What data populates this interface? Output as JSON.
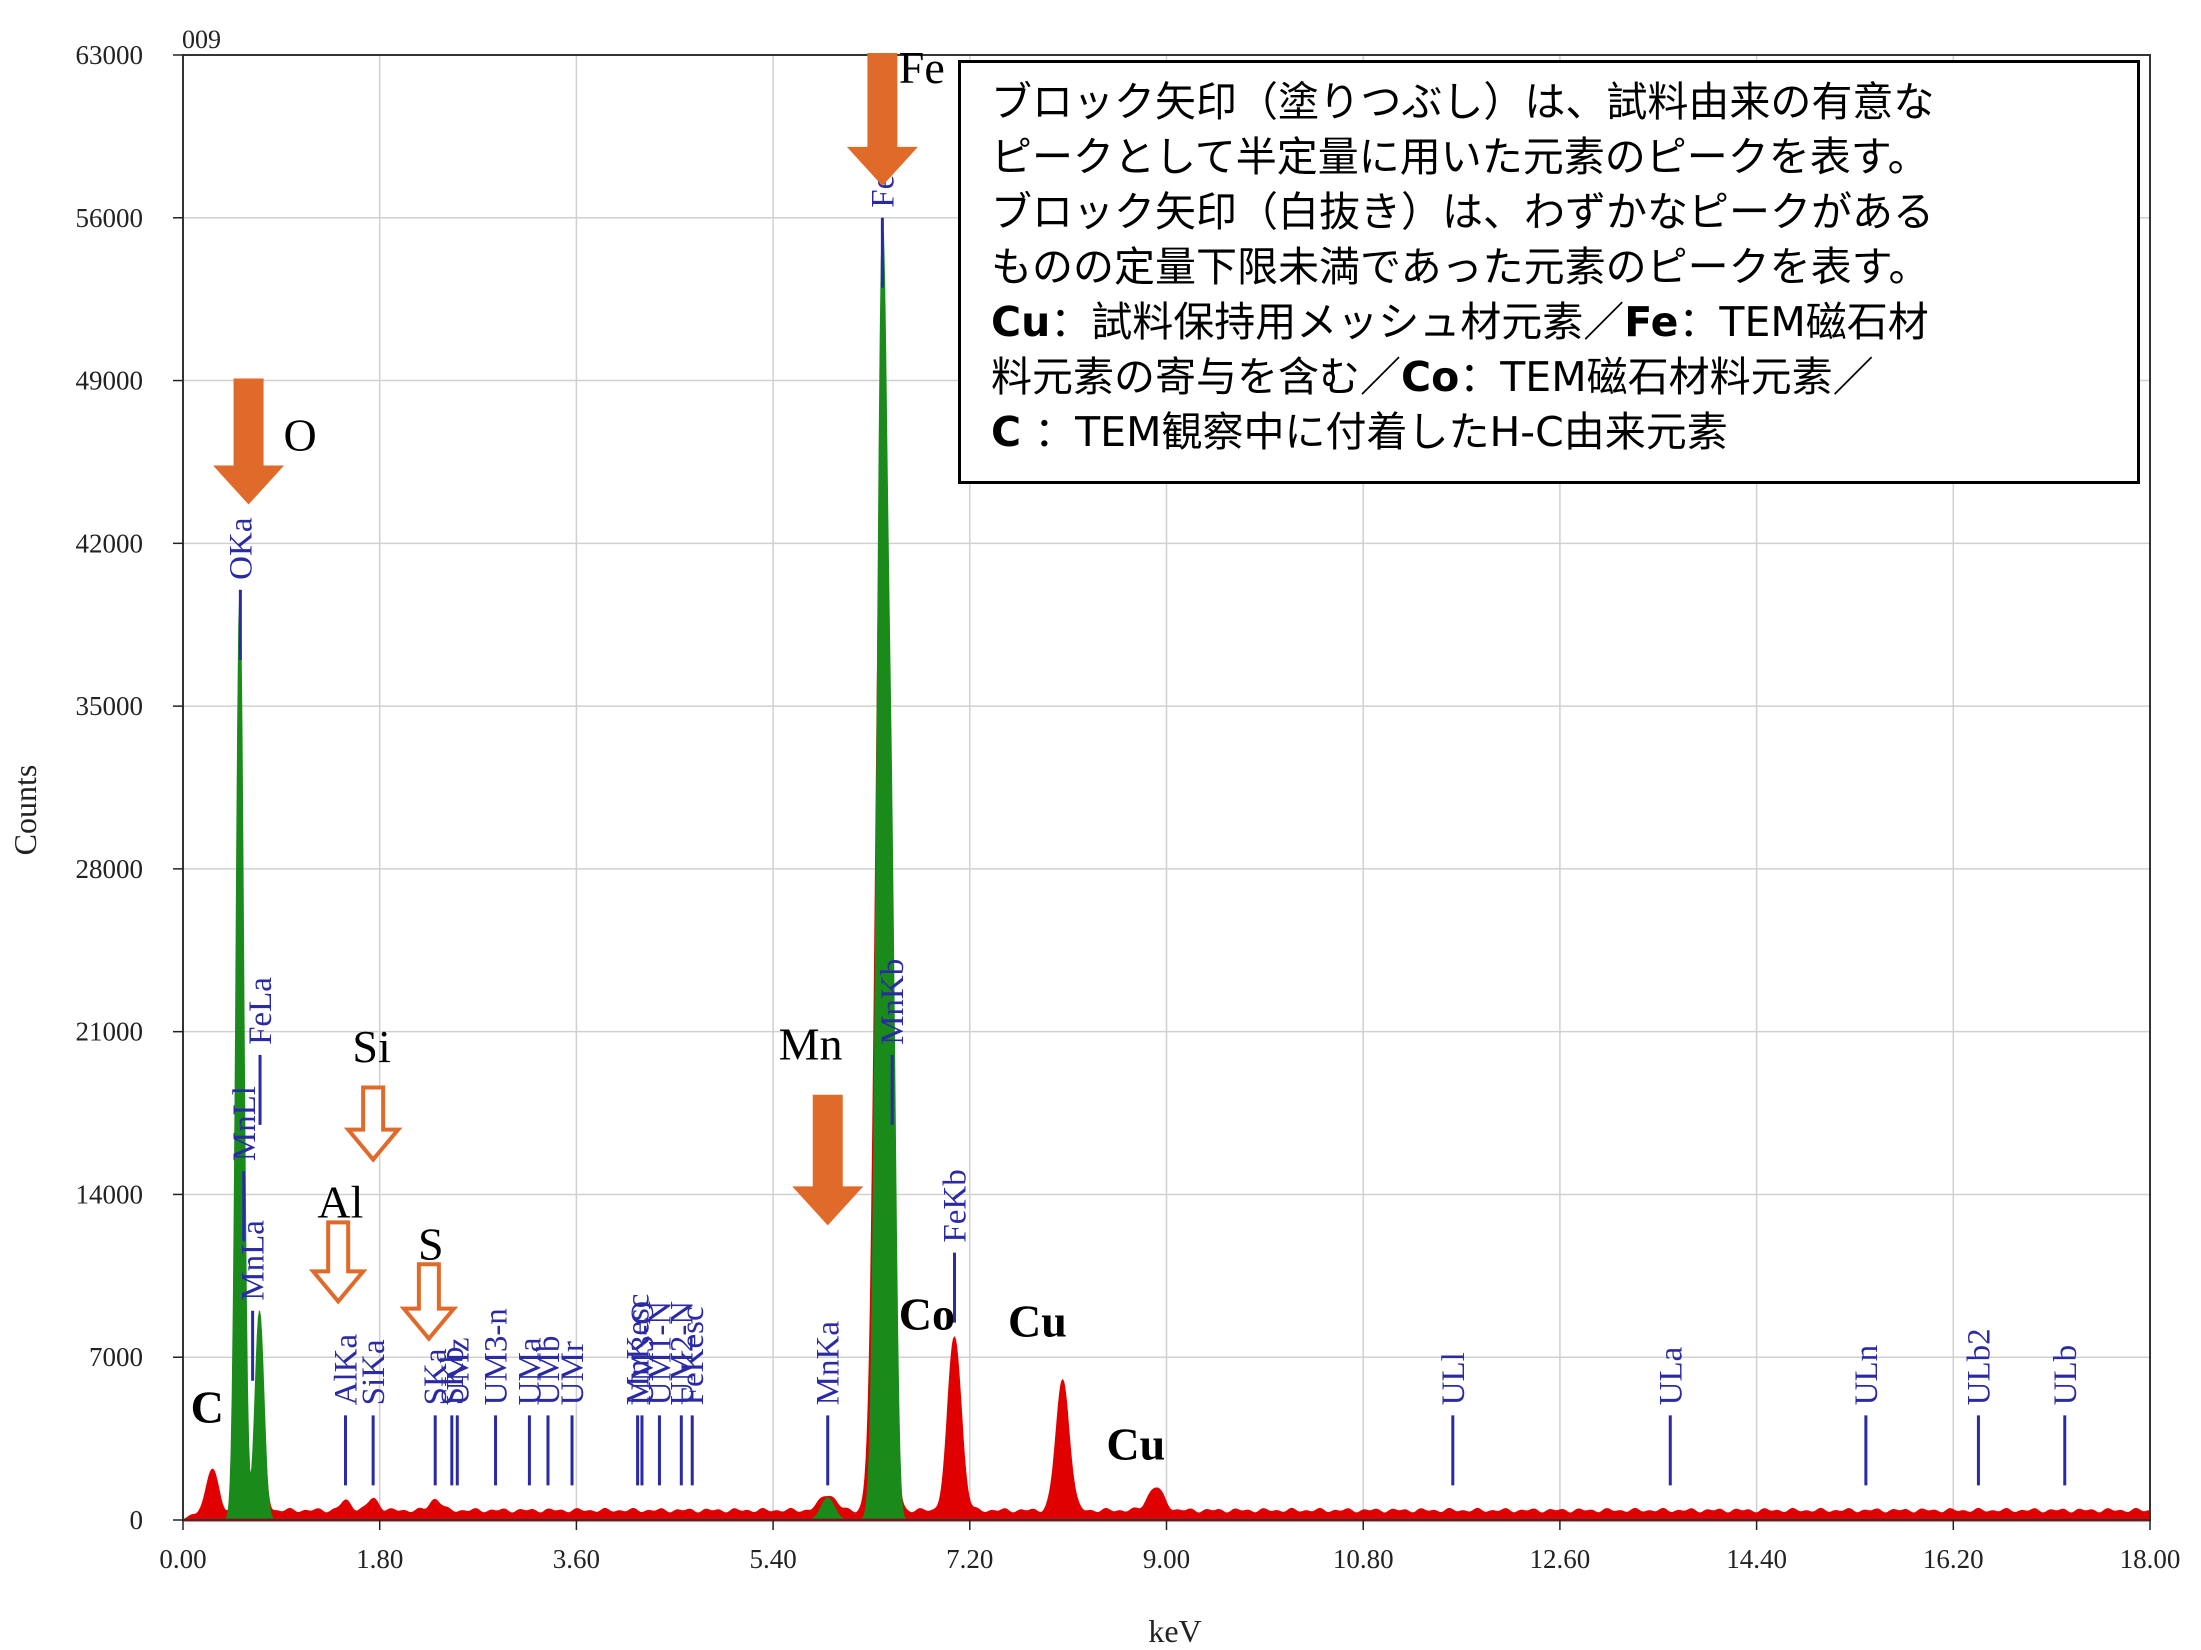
{
  "chart_data": {
    "type": "line",
    "panel_id": "009",
    "xlabel": "keV",
    "ylabel": "Counts",
    "xlim": [
      0,
      18
    ],
    "ylim": [
      0,
      63000
    ],
    "x_ticks": [
      "0.00",
      "1.80",
      "3.60",
      "5.40",
      "7.20",
      "9.00",
      "10.80",
      "12.60",
      "14.40",
      "16.20",
      "18.00"
    ],
    "y_ticks": [
      "0",
      "7000",
      "14000",
      "21000",
      "28000",
      "35000",
      "42000",
      "49000",
      "56000",
      "63000"
    ],
    "grid": true,
    "colors": {
      "spectrum": "#e00000",
      "fitted": "#1a8a1a",
      "lines": "#2a2aa5",
      "arrow": "#e06a2a"
    },
    "series": [
      {
        "color_role": "spectrum",
        "peaks": [
          [
            0.27,
            1800,
            0.05
          ],
          [
            0.53,
            3000,
            0.04
          ],
          [
            0.7,
            6500,
            0.04
          ],
          [
            1.49,
            400,
            0.05
          ],
          [
            1.74,
            500,
            0.05
          ],
          [
            2.31,
            500,
            0.05
          ],
          [
            5.9,
            700,
            0.07
          ],
          [
            6.4,
            48000,
            0.06
          ],
          [
            7.06,
            7500,
            0.06
          ],
          [
            8.05,
            5600,
            0.06
          ],
          [
            8.9,
            1000,
            0.07
          ]
        ],
        "baseline": 400
      },
      {
        "color_role": "fitted",
        "peaks": [
          [
            0.52,
            40000,
            0.035
          ],
          [
            0.7,
            9000,
            0.04
          ],
          [
            5.9,
            950,
            0.06
          ],
          [
            6.4,
            55000,
            0.05
          ],
          [
            6.49,
            19000,
            0.035
          ]
        ]
      }
    ],
    "line_markers": [
      {
        "label": "OKa",
        "x": 0.525,
        "y": 40000
      },
      {
        "label": "MnLa",
        "x": 0.637,
        "y": 9000
      },
      {
        "label": "MnLl",
        "x": 0.556,
        "y": 15000
      },
      {
        "label": "FeLa",
        "x": 0.705,
        "y": 20000
      },
      {
        "label": "AlKa",
        "x": 1.487,
        "y": 4500
      },
      {
        "label": "SiKa",
        "x": 1.74,
        "y": 4500
      },
      {
        "label": "SKa",
        "x": 2.308,
        "y": 4500
      },
      {
        "label": "SKb",
        "x": 2.46,
        "y": 4500
      },
      {
        "label": "UMz",
        "x": 2.51,
        "y": 4500
      },
      {
        "label": "UM3-n",
        "x": 2.86,
        "y": 4500
      },
      {
        "label": "UMa",
        "x": 3.17,
        "y": 4500
      },
      {
        "label": "UMb",
        "x": 3.34,
        "y": 4500
      },
      {
        "label": "UMr",
        "x": 3.56,
        "y": 4500
      },
      {
        "label": "MnKesc",
        "x": 4.16,
        "y": 4500
      },
      {
        "label": "UM3-O",
        "x": 4.2,
        "y": 4500
      },
      {
        "label": "UM1-N",
        "x": 4.36,
        "y": 4500
      },
      {
        "label": "UM2-N",
        "x": 4.56,
        "y": 4500
      },
      {
        "label": "FeKesc",
        "x": 4.66,
        "y": 4500
      },
      {
        "label": "MnKa",
        "x": 5.9,
        "y": 4500
      },
      {
        "label": "FeKa",
        "x": 6.4,
        "y": 56000
      },
      {
        "label": "MnKb",
        "x": 6.49,
        "y": 20000
      },
      {
        "label": "FeKb",
        "x": 7.06,
        "y": 11500
      },
      {
        "label": "ULl",
        "x": 11.62,
        "y": 4500
      },
      {
        "label": "ULa",
        "x": 13.61,
        "y": 4500
      },
      {
        "label": "ULn",
        "x": 15.4,
        "y": 4500
      },
      {
        "label": "ULb2",
        "x": 16.43,
        "y": 4500
      },
      {
        "label": "ULb",
        "x": 17.22,
        "y": 4500
      }
    ],
    "element_labels": [
      {
        "text": "Fe",
        "x": 6.55,
        "y": 61800,
        "bold": false
      },
      {
        "text": "O",
        "x": 0.92,
        "y": 46000,
        "bold": false
      },
      {
        "text": "Si",
        "x": 1.55,
        "y": 19700,
        "bold": false
      },
      {
        "text": "Al",
        "x": 1.23,
        "y": 13000,
        "bold": false
      },
      {
        "text": "S",
        "x": 2.15,
        "y": 11200,
        "bold": false
      },
      {
        "text": "Mn",
        "x": 5.45,
        "y": 19800,
        "bold": false
      },
      {
        "text": "C",
        "x": 0.07,
        "y": 4200,
        "bold": true
      },
      {
        "text": "Co",
        "x": 6.55,
        "y": 8200,
        "bold": true
      },
      {
        "text": "Cu",
        "x": 7.55,
        "y": 7900,
        "bold": true
      },
      {
        "text": "Cu",
        "x": 8.45,
        "y": 2600,
        "bold": true
      }
    ],
    "arrows": [
      {
        "element": "Fe",
        "filled": true,
        "x": 6.4,
        "y_top": 63000,
        "y_tip": 57500
      },
      {
        "element": "O",
        "filled": true,
        "x": 0.6,
        "y_top": 49000,
        "y_tip": 43800
      },
      {
        "element": "Mn",
        "filled": true,
        "x": 5.9,
        "y_top": 18200,
        "y_tip": 12800
      },
      {
        "element": "Si",
        "filled": false,
        "x": 1.74,
        "y_top": 18600,
        "y_tip": 15500
      },
      {
        "element": "Al",
        "filled": false,
        "x": 1.42,
        "y_top": 12800,
        "y_tip": 9400
      },
      {
        "element": "S",
        "filled": false,
        "x": 2.25,
        "y_top": 11000,
        "y_tip": 7800
      }
    ]
  },
  "note": {
    "line1": "ブロック矢印（塗りつぶし）は、試料由来の有意な",
    "line2": "ピークとして半定量に用いた元素のピークを表す。",
    "line3": "ブロック矢印（白抜き）は、わずかなピークがある",
    "line4": "ものの定量下限未満であった元素のピークを表す。",
    "cu": "Cu",
    "cu_desc": "：試料保持用メッシュ材元素／",
    "fe": "Fe",
    "fe_desc": "：TEM磁石材",
    "line6a": "料元素の寄与を含む／",
    "co": "Co",
    "co_desc": "：TEM磁石材料元素／",
    "c": "C",
    "c_desc": " ：TEM観察中に付着したH-C由来元素"
  }
}
